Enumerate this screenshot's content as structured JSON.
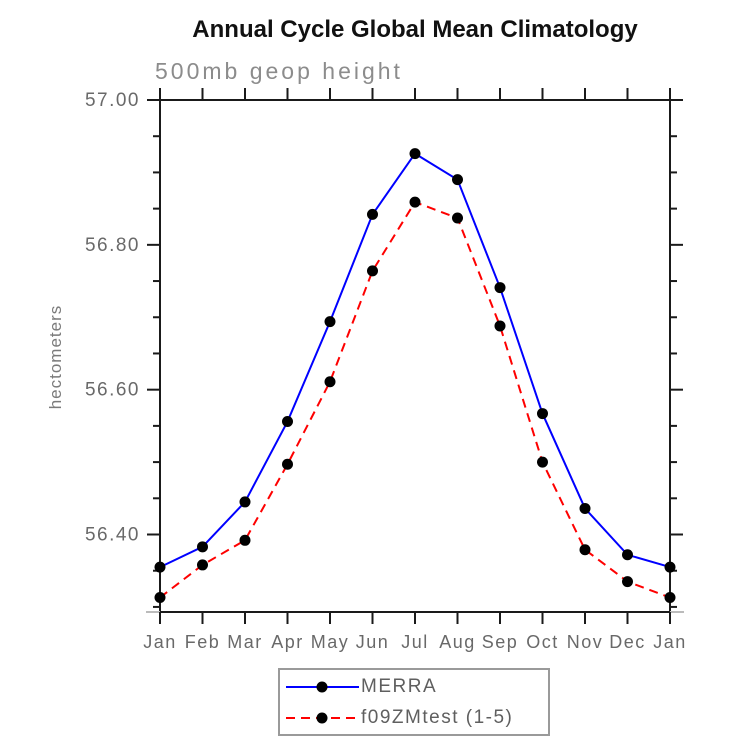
{
  "chart_data": {
    "type": "line",
    "title": "Annual Cycle Global Mean Climatology",
    "subtitle": "500mb geop height",
    "ylabel": "hectometers",
    "xlabel": "",
    "categories": [
      "Jan",
      "Feb",
      "Mar",
      "Apr",
      "May",
      "Jun",
      "Jul",
      "Aug",
      "Sep",
      "Oct",
      "Nov",
      "Dec",
      "Jan"
    ],
    "series": [
      {
        "name": "MERRA",
        "color": "#0000ff",
        "line_style": "solid",
        "marker": "black-dot",
        "values": [
          56.355,
          56.383,
          56.445,
          56.556,
          56.694,
          56.842,
          56.926,
          56.89,
          56.741,
          56.567,
          56.436,
          56.372,
          56.355
        ]
      },
      {
        "name": "f09ZMtest (1-5)",
        "color": "#fe0000",
        "line_style": "dashed",
        "marker": "black-dot",
        "values": [
          56.313,
          56.358,
          56.392,
          56.497,
          56.611,
          56.764,
          56.859,
          56.837,
          56.688,
          56.5,
          56.379,
          56.335,
          56.313
        ]
      }
    ],
    "ylim": [
      56.293,
      57.0
    ],
    "yticks_major": [
      56.4,
      56.6,
      56.8,
      57.0
    ],
    "ytick_labels": [
      "56.40",
      "56.60",
      "56.80",
      "57.00"
    ],
    "ytick_minor_step": 0.05,
    "grid": false,
    "legend_position": "bottom-center",
    "marker_color": "#000000",
    "axis_color": "#1a1a1a",
    "tick_label_color": "#696969",
    "corner_tick_color": "#bbbbbb"
  }
}
